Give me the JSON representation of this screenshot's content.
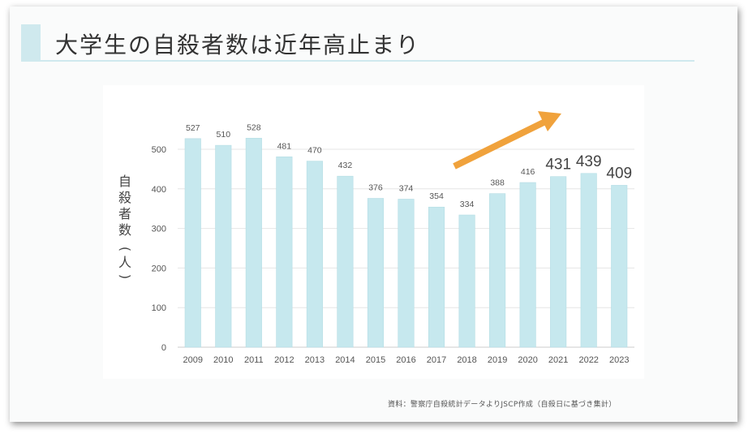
{
  "title": "大学生の自殺者数は近年高止まり",
  "source_note": "資料：警察庁自殺統計データよりJSCP作成（自殺日に基づき集計）",
  "ylabel_chars": [
    "自",
    "殺",
    "者",
    "数"
  ],
  "ylabel_paren_open": "(",
  "ylabel_paren_char": "人",
  "ylabel_paren_close": ")",
  "colors": {
    "bar": "#c6e8ee",
    "bar_edge": "#b5dde4",
    "arrow": "#f0a23c",
    "title_accent": "#cfe9ee",
    "grid": "#e6e6e6",
    "label": "#555555"
  },
  "chart_data": {
    "type": "bar",
    "title": "大学生の自殺者数は近年高止まり",
    "xlabel": "",
    "ylabel": "自殺者数（人）",
    "ylim": [
      0,
      550
    ],
    "yticks": [
      0,
      100,
      200,
      300,
      400,
      500
    ],
    "grid": true,
    "categories": [
      "2009",
      "2010",
      "2011",
      "2012",
      "2013",
      "2014",
      "2015",
      "2016",
      "2017",
      "2018",
      "2019",
      "2020",
      "2021",
      "2022",
      "2023"
    ],
    "values": [
      527,
      510,
      528,
      481,
      470,
      432,
      376,
      374,
      354,
      334,
      388,
      416,
      431,
      439,
      409
    ],
    "emphasized_labels": [
      "2021",
      "2022",
      "2023"
    ],
    "annotation": "upward-trend-arrow"
  }
}
